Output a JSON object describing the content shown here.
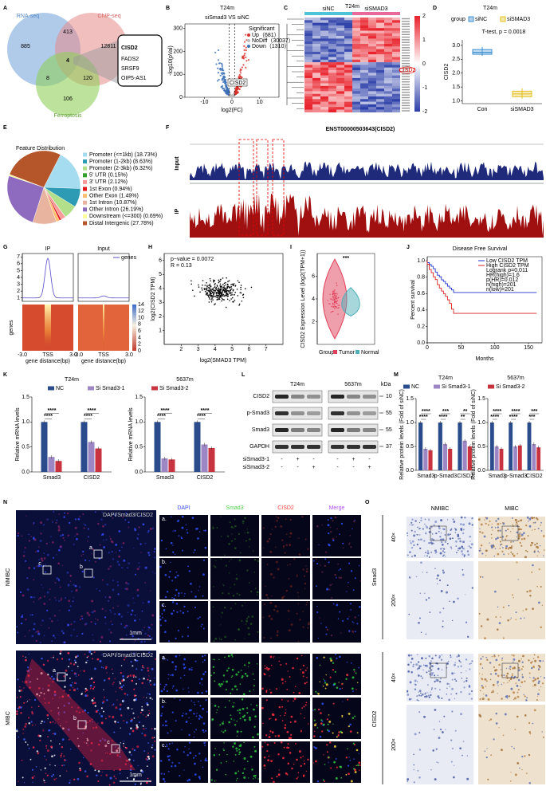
{
  "panels": {
    "A": {
      "letter": "A",
      "sets": [
        "RNA-seq",
        "ChIP-seq",
        "Ferroptosis"
      ],
      "counts": [
        885,
        413,
        12811,
        4,
        8,
        120,
        106
      ],
      "genes": [
        "CISD2",
        "FADS2",
        "SRSF9",
        "OIP5-AS1"
      ]
    },
    "B": {
      "letter": "B",
      "title": "T24m",
      "subtitle": "siSmad3 VS siNC",
      "xlabel": "log2(FC)",
      "ylabel": "-log10(pVal)",
      "xlim": [
        -17,
        17
      ],
      "xticks": [
        -10,
        0,
        10
      ],
      "ylim": [
        0,
        320
      ],
      "yticks": [
        0,
        100,
        200,
        300
      ],
      "legend_title": "Significant",
      "legend": [
        {
          "name": "Up（681）",
          "color": "#d73027"
        },
        {
          "name": "NoDiff（30037）",
          "color": "#bdbdbd"
        },
        {
          "name": "Down（1310）",
          "color": "#3b6fb6"
        }
      ],
      "annotation": "CISD2"
    },
    "C": {
      "letter": "C",
      "title": "T24m",
      "groups": [
        "siNC",
        "siSMAD3"
      ],
      "scale_ticks": [
        2,
        1,
        0,
        -1,
        -2
      ],
      "highlight": "CISD2"
    },
    "D": {
      "letter": "D",
      "title": "T24m",
      "legend_title": "group",
      "categories": [
        "Con",
        "siSMAD3"
      ],
      "series": [
        {
          "name": "siNC",
          "color": "#3d8fd1",
          "min": 2.62,
          "q1": 2.68,
          "median": 2.75,
          "q3": 2.85,
          "max": 2.95
        },
        {
          "name": "siSMAD3",
          "color": "#e3c020",
          "min": 1.08,
          "q1": 1.15,
          "median": 1.25,
          "q3": 1.35,
          "max": 1.45
        }
      ],
      "annotation": "T-test, p = 0.0018",
      "ylabel": "CISD2",
      "ylim": [
        0.9,
        3.2
      ],
      "yticks": [
        {
          "value": 1,
          "label": "1.0"
        },
        {
          "value": 1.5,
          "label": "1.5"
        },
        {
          "value": 2,
          "label": "2.0"
        },
        {
          "value": 2.5,
          "label": "2.5"
        },
        {
          "value": 3,
          "label": "3.0"
        }
      ]
    },
    "E": {
      "letter": "E",
      "title": "Feature Distribution",
      "labels": [
        "Promoter (<=1kb) (18.73%)",
        "Promoter (1-2kb) (8.63%)",
        "Promoter (2-3kb) (6.32%)",
        "5' UTR (0.15%)",
        "3' UTR (2.12%)",
        "1st Exon (0.94%)",
        "Other Exon (1.49%)",
        "1st Intron (10.87%)",
        "Other Intron (26.19%)",
        "Downstream (<=300) (0.69%)",
        "Distal Intergenic (27.78%)"
      ],
      "values": [
        18.73,
        8.63,
        6.32,
        0.15,
        2.12,
        0.94,
        1.49,
        10.87,
        26.19,
        0.69,
        27.78
      ],
      "colors": [
        "#a6dcef",
        "#2c9bb3",
        "#b2df8a",
        "#33a02c",
        "#fb9a99",
        "#e31a1c",
        "#fdbf6f",
        "#e8b4a0",
        "#8e6bbf",
        "#ffff99",
        "#b5552a"
      ]
    },
    "F": {
      "letter": "F",
      "title": "ENST00000503643(CISD2)",
      "tracks": [
        "Input",
        "IP"
      ]
    },
    "G": {
      "letter": "G",
      "titles": [
        "IP",
        "Input"
      ],
      "legend": "genes",
      "xticks": [
        "-3.0",
        "TSS",
        "3.0"
      ],
      "ylabel": "genes",
      "xlabel": "gene distance(bp)",
      "ylim": [
        0.5,
        7.5
      ],
      "yticks": [
        1,
        2,
        3,
        4,
        5,
        6,
        7
      ],
      "clim": [
        0,
        14
      ],
      "cticks": [
        0,
        2,
        4,
        6,
        8,
        10,
        12,
        14
      ]
    },
    "H": {
      "letter": "H",
      "annotations": [
        "p−value = 0.0072",
        "R = 0.13"
      ],
      "xlabel": "log2(SMAD3 TPM)",
      "ylabel": "log2(CISD2 TPM)",
      "xlim": [
        1,
        8
      ],
      "xticks": [
        2,
        3,
        4,
        5,
        6,
        7
      ],
      "ylim": [
        0,
        6.5
      ],
      "yticks": [
        1,
        2,
        3,
        4,
        5,
        6
      ]
    },
    "I": {
      "letter": "I",
      "stars": "***",
      "ylabel": "CISD2 Expression Level (log2(TPM+1))",
      "ylim": [
        0,
        8
      ],
      "yticks": [
        2,
        4,
        6
      ],
      "legend_title": "Group",
      "groups": [
        {
          "name": "Tumor",
          "color": "#e0405a"
        },
        {
          "name": "Normal",
          "color": "#4fb0b8"
        }
      ]
    },
    "J": {
      "letter": "J",
      "title": "Disease Free Survival",
      "legend": [
        "Low CISD2 TPM",
        "High CISD2 TPM",
        "Logrank p=0.011",
        "HR(high)=1.6",
        "p(HR)=0.012",
        "n(high)=201",
        "n(low)=201"
      ],
      "colors": [
        "#2233cc",
        "#dd2222"
      ],
      "xlabel": "Months",
      "ylabel": "Percent survival",
      "xlim": [
        0,
        170
      ],
      "xticks": [
        0,
        50,
        100,
        150
      ],
      "ylim": [
        0,
        1.05
      ],
      "yticks": [
        {
          "value": 0,
          "label": "0.0"
        },
        {
          "value": 0.2,
          "label": "0.2"
        },
        {
          "value": 0.4,
          "label": "0.4"
        },
        {
          "value": 0.6,
          "label": "0.6"
        },
        {
          "value": 0.8,
          "label": "0.8"
        },
        {
          "value": 1,
          "label": "1.0"
        }
      ]
    },
    "K": {
      "letter": "K",
      "ylabel": "Relative mRNA levels",
      "series": [
        {
          "name": "NC",
          "color": "#2b4c8c"
        },
        {
          "name": "Si Smad3-1",
          "color": "#9d86c4"
        },
        {
          "name": "Si Smad3-2",
          "color": "#c9333f"
        }
      ],
      "categories": [
        "Smad3",
        "CISD2"
      ],
      "ylim": [
        0,
        1.5
      ],
      "yticks": [
        {
          "value": 0,
          "label": "0.0"
        },
        {
          "value": 0.5,
          "label": "0.5"
        },
        {
          "value": 1,
          "label": "1.0"
        },
        {
          "value": 1.5,
          "label": "1.5"
        }
      ],
      "groups": [
        {
          "title": "T24m",
          "values": [
            [
              1,
              1
            ],
            [
              0.3,
              0.6
            ],
            [
              0.22,
              0.47
            ]
          ],
          "stars": [
            [
              "****",
              "****"
            ],
            [
              "****",
              "****"
            ]
          ]
        },
        {
          "title": "5637m",
          "values": [
            [
              1,
              1
            ],
            [
              0.27,
              0.55
            ],
            [
              0.25,
              0.48
            ]
          ],
          "stars": [
            [
              "****",
              "****"
            ],
            [
              "****",
              "****"
            ]
          ]
        }
      ]
    },
    "L": {
      "letter": "L",
      "cells": [
        "T24m",
        "5637m"
      ],
      "unit": "kDa",
      "rows": [
        "CISD2",
        "p-Smad3",
        "Smad3",
        "GAPDH"
      ],
      "markers": [
        10,
        55,
        55,
        37
      ],
      "conditions": [
        "siSmad3-1",
        "siSmad3-2"
      ],
      "signs": [
        [
          "-",
          "+",
          "-"
        ],
        [
          "-",
          "-",
          "+"
        ]
      ]
    },
    "M": {
      "letter": "M",
      "ylabel": "Relative protein levels (Fold of siNC)",
      "series": [
        {
          "name": "NC",
          "color": "#2b4c8c"
        },
        {
          "name": "Si Smad3-1",
          "color": "#9d86c4"
        },
        {
          "name": "Si Smad3-2",
          "color": "#c9333f"
        }
      ],
      "categories": [
        "Smad3",
        "p-Smad3",
        "CISD2"
      ],
      "ylim": [
        0,
        1.5
      ],
      "yticks": [
        {
          "value": 0,
          "label": "0.0"
        },
        {
          "value": 0.5,
          "label": "0.5"
        },
        {
          "value": 1,
          "label": "1.0"
        },
        {
          "value": 1.5,
          "label": "1.5"
        }
      ],
      "groups": [
        {
          "title": "T24m",
          "values": [
            [
              1,
              1,
              1
            ],
            [
              0.45,
              0.55,
              0.62
            ],
            [
              0.42,
              0.45,
              0.5
            ]
          ],
          "stars": [
            [
              "****",
              "****"
            ],
            [
              "***",
              "****"
            ],
            [
              "**",
              "**"
            ]
          ]
        },
        {
          "title": "5637m",
          "values": [
            [
              1,
              1,
              1
            ],
            [
              0.5,
              0.5,
              0.55
            ],
            [
              0.45,
              0.52,
              0.48
            ]
          ],
          "stars": [
            [
              "****",
              "****"
            ],
            [
              "****",
              "****"
            ],
            [
              "***",
              "***"
            ]
          ]
        }
      ]
    },
    "N": {
      "letter": "N",
      "groups": [
        "NMIBC",
        "MIBC"
      ],
      "channels": [
        "DAPI",
        "Smad3",
        "CISD2",
        "Merge"
      ],
      "subpanels": [
        "a.",
        "b.",
        "c."
      ],
      "zoom": [
        "a",
        "b",
        "c"
      ],
      "scale": "1mm",
      "overlay": "DAPI/Smad3/CISD2"
    },
    "O": {
      "letter": "O",
      "columns": [
        "NMIBC",
        "MIBC"
      ],
      "stains": [
        "Smad3",
        "CISD2"
      ],
      "mags": [
        "40×",
        "200×"
      ]
    }
  }
}
